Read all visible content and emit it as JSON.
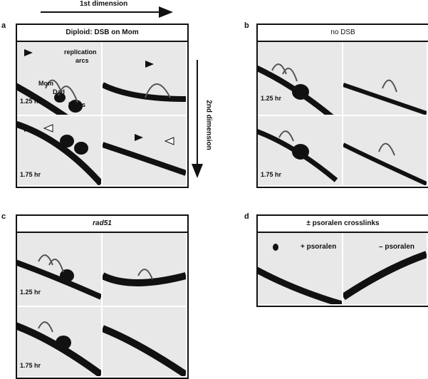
{
  "header": {
    "first_dimension": "1st dimension",
    "second_dimension": "2nd dimension"
  },
  "panels": {
    "a": {
      "letter": "a",
      "title": "Diploid: DSB on Mom",
      "t1": "1.25 hr",
      "t2": "1.75 hr",
      "ann_replication": "replication",
      "ann_arcs": "arcs",
      "ann_mom": "Mom",
      "ann_dad": "Dad",
      "ann_dsbs": "DSBs"
    },
    "b": {
      "letter": "b",
      "title": "no DSB",
      "t1": "1.25 hr",
      "t2": "1.75 hr"
    },
    "c": {
      "letter": "c",
      "title": "rad51",
      "t1": "1.25 hr",
      "t2": "1.75 hr"
    },
    "d": {
      "letter": "d",
      "title": "± psoralen crosslinks",
      "left": "+ psoralen",
      "right": "– psoralen"
    }
  },
  "colors": {
    "gel_background": "#e8e8e8",
    "band": "#111111",
    "border": "#111111"
  }
}
